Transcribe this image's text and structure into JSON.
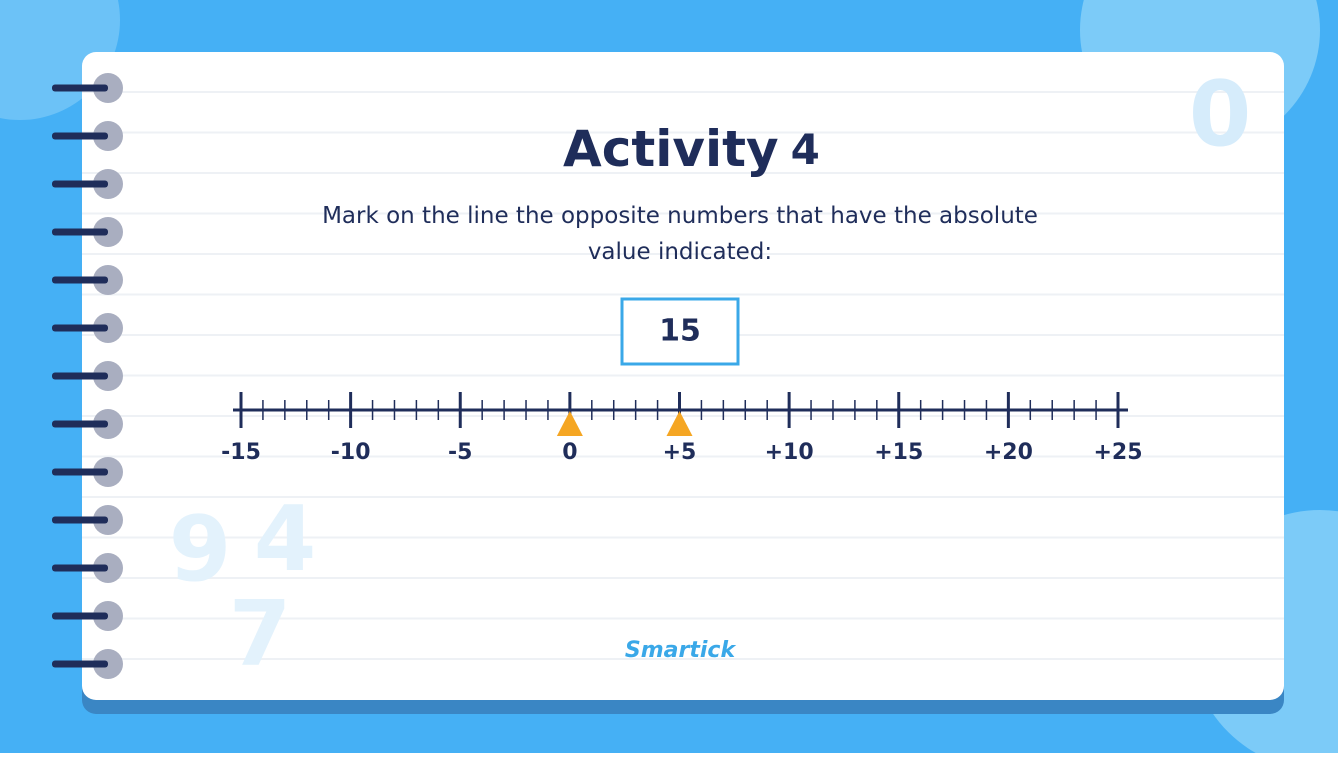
{
  "title": "Activity",
  "title_number": "4",
  "instruction": "Mark on the line the opposite numbers that have the absolute value indicated:",
  "absolute_value": "15",
  "number_line": {
    "range": [
      -15,
      25
    ],
    "minor_step": 1,
    "ticks": [
      -15,
      -10,
      -5,
      0,
      {
        "value": 5,
        "label": "+5"
      },
      {
        "value": 10,
        "label": "+10"
      },
      {
        "value": 15,
        "label": "+15"
      },
      {
        "value": 20,
        "label": "+20"
      },
      {
        "value": 25,
        "label": "+25"
      }
    ],
    "markers": [
      0,
      5
    ]
  },
  "logo": "Smartick",
  "background_digits": [
    "0",
    "9",
    "4",
    "7"
  ]
}
